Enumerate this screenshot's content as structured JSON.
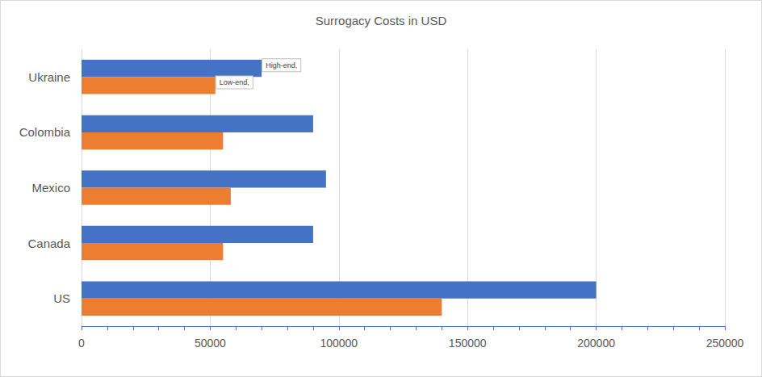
{
  "chart_data": {
    "type": "bar",
    "orientation": "horizontal",
    "title": "Surrogacy Costs in USD",
    "categories": [
      "US",
      "Canada",
      "Mexico",
      "Colombia",
      "Ukraine"
    ],
    "series": [
      {
        "name": "High-end",
        "color": "#4472c4",
        "values": [
          200000,
          90000,
          95000,
          90000,
          70000
        ]
      },
      {
        "name": "Low-end",
        "color": "#ed7d31",
        "values": [
          140000,
          55000,
          58000,
          55000,
          52000
        ]
      }
    ],
    "xlim": [
      0,
      250000
    ],
    "xticks": [
      0,
      50000,
      100000,
      150000,
      200000,
      250000
    ],
    "grid": true,
    "annotations": [
      {
        "text": "Low-end,",
        "series": "Low-end",
        "category": "Ukraine"
      },
      {
        "text": "High-end,",
        "series": "High-end",
        "category": "Ukraine"
      }
    ]
  }
}
